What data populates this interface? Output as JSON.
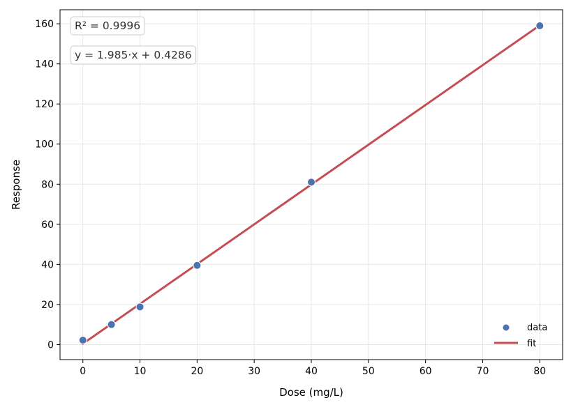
{
  "chart_data": {
    "type": "scatter",
    "title": "",
    "xlabel": "Dose (mg/L)",
    "ylabel": "Response",
    "xlim": [
      -4,
      84
    ],
    "ylim": [
      -7.5,
      167
    ],
    "x_ticks": [
      0,
      10,
      20,
      30,
      40,
      50,
      60,
      70,
      80
    ],
    "y_ticks": [
      0,
      20,
      40,
      60,
      80,
      100,
      120,
      140,
      160
    ],
    "grid": true,
    "legend_position": "bottom-right",
    "series": [
      {
        "name": "data",
        "kind": "scatter",
        "color": "#4c72b0",
        "x": [
          0,
          5,
          10,
          20,
          40,
          80
        ],
        "y": [
          2.2,
          10.0,
          18.8,
          39.5,
          81.0,
          159.0
        ]
      },
      {
        "name": "fit",
        "kind": "line",
        "color": "#c44e52",
        "x": [
          0,
          80
        ],
        "y": [
          0.4286,
          159.2286
        ]
      }
    ],
    "annotations": [
      {
        "text": "R² = 0.9996",
        "position": "top-left"
      },
      {
        "text": "y = 1.985·x + 0.4286",
        "position": "top-left-below"
      }
    ]
  }
}
